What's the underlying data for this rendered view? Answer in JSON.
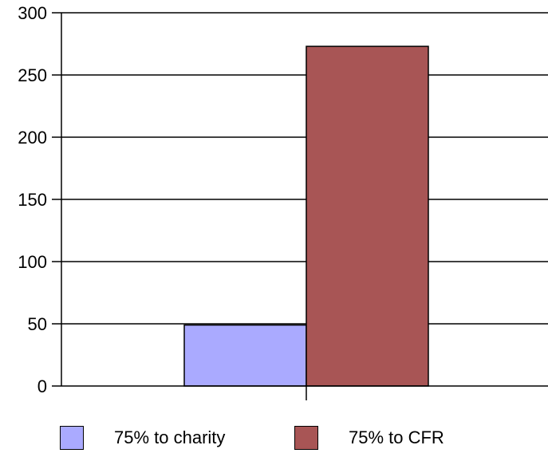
{
  "chart_data": {
    "type": "bar",
    "title": "",
    "xlabel": "",
    "ylabel": "",
    "categories": [
      ""
    ],
    "series": [
      {
        "name": "75% to charity",
        "values": [
          49
        ],
        "color": "#aaaaff"
      },
      {
        "name": "75% to CFR",
        "values": [
          273
        ],
        "color": "#a85555"
      }
    ],
    "ylim": [
      0,
      300
    ],
    "yticks": [
      0,
      50,
      100,
      150,
      200,
      250,
      300
    ],
    "grid": true,
    "legend_position": "bottom"
  }
}
